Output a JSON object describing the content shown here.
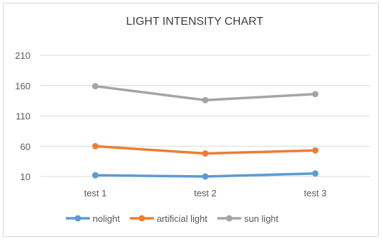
{
  "chart_data": {
    "type": "line",
    "title": "LIGHT INTENSITY CHART",
    "categories": [
      "test 1",
      "test 2",
      "test 3"
    ],
    "y_ticks": [
      "210",
      "160",
      "110",
      "60",
      "10"
    ],
    "ylim": [
      10,
      210
    ],
    "grid": true,
    "legend_position": "bottom",
    "series": [
      {
        "name": "nolight",
        "color": "#5b9bd5",
        "values": [
          12,
          10,
          15
        ]
      },
      {
        "name": "artificial light",
        "color": "#ed7d31",
        "values": [
          60,
          48,
          53
        ]
      },
      {
        "name": "sun light",
        "color": "#a5a5a5",
        "values": [
          159,
          136,
          146
        ]
      }
    ]
  }
}
